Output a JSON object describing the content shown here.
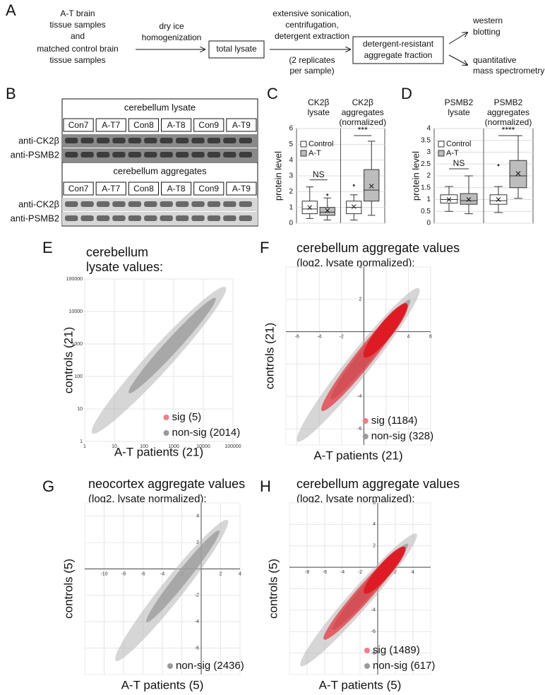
{
  "panel_a": {
    "label": "A",
    "input_lines": [
      "A-T brain",
      "tissue samples",
      "and",
      "matched control brain",
      "tissue samples"
    ],
    "step1_lines": [
      "dry ice",
      "homogenization"
    ],
    "total_lysate": "total lysate",
    "step2_lines": [
      "extensive sonication,",
      "centrifugation,",
      "detergent extraction"
    ],
    "replicates_lines": [
      "(2 replicates",
      "per sample)"
    ],
    "fraction_lines": [
      "detergent-resistant",
      "aggregate fraction"
    ],
    "output1_lines": [
      "western",
      "blotting"
    ],
    "output2_lines": [
      "quantitative",
      "mass spectrometry"
    ]
  },
  "panel_b": {
    "label": "B",
    "blots": [
      {
        "title": "cerebellum lysate",
        "lanes": [
          "Con7",
          "A-T7",
          "Con8",
          "A-T8",
          "Con9",
          "A-T9"
        ],
        "rows": [
          "anti-CK2β",
          "anti-PSMB2"
        ]
      },
      {
        "title": "cerebellum aggregates",
        "lanes": [
          "Con7",
          "A-T7",
          "Con8",
          "A-T8",
          "Con9",
          "A-T9"
        ],
        "rows": [
          "anti-CK2β",
          "anti-PSMB2"
        ]
      }
    ]
  },
  "panel_c": {
    "label": "C",
    "y_label": "protein level",
    "ylim": [
      0,
      6
    ],
    "yticks": [
      0,
      1,
      2,
      3,
      4,
      5,
      6
    ],
    "legend": [
      "Control",
      "A-T"
    ],
    "fills": [
      "#ffffff",
      "#bdbdbd"
    ],
    "groups": [
      {
        "title_lines": [
          "CK2β",
          "lysate"
        ],
        "significance": "NS",
        "boxes": [
          {
            "min": 0.3,
            "q1": 0.6,
            "median": 0.9,
            "q3": 1.4,
            "max": 2.3,
            "mean": 1.0
          },
          {
            "min": 0.2,
            "q1": 0.5,
            "median": 0.7,
            "q3": 1.0,
            "max": 1.6,
            "mean": 0.8,
            "outliers": [
              1.8
            ]
          }
        ]
      },
      {
        "title_lines": [
          "CK2β",
          "aggregates",
          "(normalized)"
        ],
        "significance": "***",
        "boxes": [
          {
            "min": 0.2,
            "q1": 0.6,
            "median": 1.0,
            "q3": 1.4,
            "max": 1.8,
            "mean": 1.05,
            "outliers": [
              2.4
            ]
          },
          {
            "min": 0.5,
            "q1": 1.4,
            "median": 2.1,
            "q3": 3.4,
            "max": 5.2,
            "mean": 2.35
          }
        ]
      }
    ]
  },
  "panel_d": {
    "label": "D",
    "y_label": "protein level",
    "ylim": [
      0,
      4
    ],
    "yticks": [
      0,
      0.5,
      1,
      1.5,
      2,
      2.5,
      3,
      3.5,
      4
    ],
    "legend": [
      "Control",
      "A-T"
    ],
    "fills": [
      "#ffffff",
      "#bdbdbd"
    ],
    "groups": [
      {
        "title_lines": [
          "PSMB2",
          "lysate"
        ],
        "significance": "NS",
        "boxes": [
          {
            "min": 0.5,
            "q1": 0.85,
            "median": 1.0,
            "q3": 1.2,
            "max": 1.55,
            "mean": 1.0
          },
          {
            "min": 0.4,
            "q1": 0.8,
            "median": 0.95,
            "q3": 1.25,
            "max": 2.0,
            "mean": 1.0
          }
        ]
      },
      {
        "title_lines": [
          "PSMB2",
          "aggregates",
          "(normalized)"
        ],
        "significance": "****",
        "boxes": [
          {
            "min": 0.45,
            "q1": 0.8,
            "median": 0.95,
            "q3": 1.2,
            "max": 1.55,
            "mean": 1.0,
            "outliers": [
              2.45
            ]
          },
          {
            "min": 1.05,
            "q1": 1.5,
            "median": 2.0,
            "q3": 2.65,
            "max": 3.7,
            "mean": 2.1
          }
        ]
      }
    ]
  },
  "scatter_panels": [
    {
      "label": "E",
      "title_lines": [
        "cerebellum",
        "lysate values:"
      ],
      "x_label": "A-T patients (21)",
      "y_label": "controls (21)",
      "log": true,
      "xlim": [
        1,
        100000
      ],
      "ylim": [
        1,
        100000
      ],
      "xticks": [
        1,
        10,
        100,
        1000,
        10000,
        100000
      ],
      "yticks": [
        1,
        10,
        100,
        1000,
        10000,
        100000
      ],
      "legend": [
        {
          "label": "sig (5)",
          "color": "#f37c86"
        },
        {
          "label": "non-sig (2014)",
          "color": "#9a9a9a"
        }
      ]
    },
    {
      "label": "F",
      "title_lines": [
        "cerebellum aggregate values",
        "(log2, lysate normalized):"
      ],
      "x_label": "A-T patients (21)",
      "y_label": "controls (21)",
      "log": false,
      "xlim": [
        -7,
        6
      ],
      "ylim": [
        -7,
        4
      ],
      "xticks": [
        -6,
        -4,
        -2,
        2,
        4,
        6
      ],
      "yticks": [
        -6,
        -4,
        -2,
        2,
        4
      ],
      "legend": [
        {
          "label": "sig (1184)",
          "color": "#f37c86"
        },
        {
          "label": "non-sig (328)",
          "color": "#9a9a9a"
        }
      ]
    },
    {
      "label": "G",
      "title_lines": [
        "neocortex aggregate values",
        "(log2, lysate normalized):"
      ],
      "x_label": "A-T patients (5)",
      "y_label": "controls (5)",
      "log": false,
      "xlim": [
        -12,
        4
      ],
      "ylim": [
        -8,
        5
      ],
      "xticks": [
        -10,
        -8,
        -6,
        -4,
        -2,
        2,
        4
      ],
      "yticks": [
        -6,
        -4,
        -2,
        2,
        4
      ],
      "legend": [
        {
          "label": "non-sig (2436)",
          "color": "#9a9a9a"
        }
      ]
    },
    {
      "label": "H",
      "title_lines": [
        "cerebellum aggregate values",
        "(log2, lysate normalized):"
      ],
      "x_label": "A-T patients (5)",
      "y_label": "controls (5)",
      "log": false,
      "xlim": [
        -10,
        6
      ],
      "ylim": [
        -10,
        6
      ],
      "xticks": [
        -8,
        -6,
        -4,
        -2,
        2,
        4
      ],
      "yticks": [
        -8,
        -6,
        -4,
        -2,
        2,
        4,
        6
      ],
      "legend": [
        {
          "label": "sig (1489)",
          "color": "#f37c86"
        },
        {
          "label": "non-sig (617)",
          "color": "#9a9a9a"
        }
      ]
    }
  ]
}
